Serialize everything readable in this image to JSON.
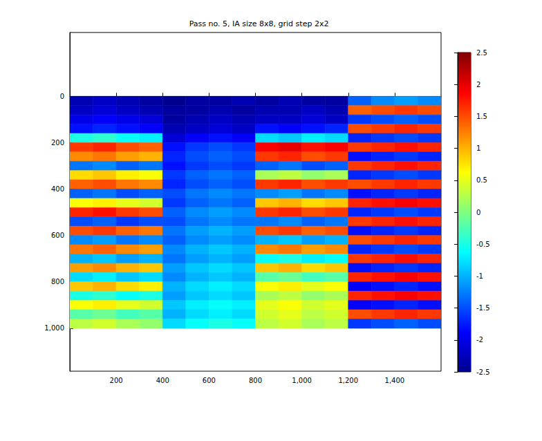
{
  "chart_data": {
    "type": "heatmap",
    "title": "Pass no. 5, IA size 8x8, grid step 2x2",
    "x_edges": [
      0,
      100,
      200,
      300,
      400,
      500,
      600,
      700,
      800,
      900,
      1000,
      1100,
      1200,
      1300,
      1400,
      1500,
      1600
    ],
    "y_edges": [
      0,
      40,
      80,
      120,
      160,
      200,
      240,
      280,
      320,
      360,
      400,
      440,
      480,
      520,
      560,
      600,
      640,
      680,
      720,
      760,
      800,
      840,
      880,
      920,
      960,
      1000
    ],
    "cells": [
      [
        -2.3,
        -2.2,
        -2.3,
        -2.4,
        -2.5,
        -2.4,
        -2.4,
        -2.3,
        -2.4,
        -2.3,
        -2.4,
        -2.4,
        -1.4,
        -1.2,
        -1.1,
        -1.2
      ],
      [
        -2.2,
        -2.1,
        -2.2,
        -2.3,
        -2.4,
        -2.4,
        -2.3,
        -2.4,
        -2.3,
        -2.3,
        -2.2,
        -2.3,
        1.4,
        1.5,
        1.6,
        1.5
      ],
      [
        -2.0,
        -1.9,
        -2.0,
        -2.1,
        -2.4,
        -2.3,
        -2.2,
        -2.3,
        -2.2,
        -2.2,
        -2.1,
        -2.2,
        -1.6,
        -1.5,
        -1.4,
        -1.5
      ],
      [
        -1.8,
        -1.7,
        -1.8,
        -1.9,
        -2.3,
        -2.2,
        -2.1,
        -2.2,
        -1.8,
        -1.9,
        -1.8,
        -1.7,
        1.5,
        1.6,
        1.7,
        1.6
      ],
      [
        -0.5,
        -0.4,
        -0.6,
        -0.7,
        -2.1,
        -1.9,
        -1.8,
        -1.9,
        -0.8,
        -0.9,
        -0.7,
        -0.8,
        -1.7,
        -1.6,
        -1.5,
        -1.6
      ],
      [
        1.6,
        1.7,
        1.5,
        1.4,
        -1.8,
        -1.6,
        -1.5,
        -1.6,
        1.9,
        2.0,
        1.8,
        1.9,
        1.6,
        1.7,
        1.8,
        1.7
      ],
      [
        1.2,
        1.3,
        1.1,
        1.0,
        -1.7,
        -1.5,
        -1.4,
        -1.5,
        1.6,
        1.7,
        1.5,
        1.6,
        -1.8,
        -1.7,
        -1.6,
        -1.7
      ],
      [
        -1.3,
        -1.2,
        -1.4,
        -1.3,
        -1.8,
        -1.6,
        -1.5,
        -1.6,
        -1.4,
        -1.3,
        -1.5,
        -1.4,
        1.6,
        1.7,
        1.8,
        1.7
      ],
      [
        0.8,
        0.9,
        0.7,
        0.6,
        -1.6,
        -1.4,
        -1.3,
        -1.4,
        0.2,
        0.3,
        0.1,
        0.2,
        -1.7,
        -1.6,
        -1.5,
        -1.6
      ],
      [
        1.4,
        1.5,
        1.3,
        1.2,
        -1.7,
        -1.5,
        -1.4,
        -1.5,
        1.6,
        1.7,
        1.5,
        1.6,
        1.5,
        1.6,
        1.7,
        1.6
      ],
      [
        -1.4,
        -1.3,
        -1.5,
        -1.4,
        -1.5,
        -1.3,
        -1.2,
        -1.3,
        -1.2,
        -1.1,
        -1.3,
        -1.2,
        -1.8,
        -1.7,
        -1.6,
        -1.7
      ],
      [
        0.6,
        0.7,
        0.5,
        0.4,
        -1.6,
        -1.4,
        -1.3,
        -1.4,
        0.9,
        1.0,
        0.8,
        0.9,
        1.7,
        1.8,
        1.9,
        1.8
      ],
      [
        1.7,
        1.8,
        1.6,
        1.5,
        -1.4,
        -1.2,
        -1.1,
        -1.2,
        1.6,
        1.7,
        1.5,
        1.6,
        -1.7,
        -1.6,
        -1.5,
        -1.6
      ],
      [
        -1.5,
        -1.4,
        -1.6,
        -1.5,
        -1.5,
        -1.3,
        -1.2,
        -1.3,
        -1.3,
        -1.2,
        -1.4,
        -1.3,
        1.6,
        1.7,
        1.8,
        1.7
      ],
      [
        1.5,
        1.6,
        1.4,
        1.3,
        -1.3,
        -1.1,
        -1.0,
        -1.1,
        1.5,
        1.6,
        1.4,
        1.5,
        -1.8,
        -1.7,
        -1.6,
        -1.7
      ],
      [
        -1.2,
        -1.1,
        -1.3,
        -1.2,
        -1.4,
        -1.2,
        -1.1,
        -1.2,
        -1.0,
        -0.9,
        -1.1,
        -1.0,
        1.5,
        1.6,
        1.7,
        1.6
      ],
      [
        1.3,
        1.4,
        1.2,
        1.1,
        -1.2,
        -1.0,
        -0.9,
        -1.0,
        1.2,
        1.3,
        1.1,
        1.2,
        -1.7,
        -1.6,
        -1.5,
        -1.6
      ],
      [
        -1.0,
        -0.9,
        -1.1,
        -1.0,
        -1.3,
        -1.1,
        -1.0,
        -1.1,
        -0.6,
        -0.5,
        -0.7,
        -0.6,
        1.6,
        1.7,
        1.8,
        1.7
      ],
      [
        1.1,
        1.2,
        1.0,
        0.9,
        -1.1,
        -0.9,
        -0.8,
        -0.9,
        0.9,
        1.0,
        0.8,
        0.9,
        -1.8,
        -1.7,
        -1.6,
        -1.7
      ],
      [
        -0.8,
        -0.7,
        -0.9,
        -0.8,
        -1.2,
        -1.0,
        -0.9,
        -1.0,
        -0.2,
        -0.1,
        -0.3,
        -0.2,
        1.7,
        1.8,
        1.9,
        1.8
      ],
      [
        0.9,
        1.0,
        0.8,
        0.7,
        -1.0,
        -0.8,
        -0.7,
        -0.8,
        0.6,
        0.7,
        0.5,
        0.6,
        -1.9,
        -1.8,
        -1.7,
        -1.8
      ],
      [
        -0.5,
        -0.4,
        -0.6,
        -0.5,
        -1.1,
        -0.9,
        -0.8,
        -0.9,
        0.2,
        0.3,
        0.1,
        0.2,
        1.7,
        1.8,
        1.9,
        1.8
      ],
      [
        0.6,
        0.7,
        0.5,
        0.4,
        -0.9,
        -0.7,
        -0.6,
        -0.7,
        0.5,
        0.6,
        0.4,
        0.5,
        -1.9,
        -1.8,
        -1.7,
        -1.8
      ],
      [
        -0.2,
        -0.1,
        -0.3,
        -0.2,
        -1.0,
        -0.8,
        -0.7,
        -0.8,
        0.4,
        0.5,
        0.3,
        0.4,
        1.5,
        1.6,
        1.7,
        1.6
      ],
      [
        0.3,
        0.4,
        0.2,
        0.1,
        -0.8,
        -0.6,
        -0.5,
        -0.6,
        0.3,
        0.4,
        0.2,
        0.3,
        -1.6,
        -1.5,
        -1.4,
        -1.5
      ]
    ],
    "xlim": [
      0,
      1600
    ],
    "xticks": [
      200,
      400,
      600,
      800,
      1000,
      1200,
      1400
    ],
    "ylim": [
      -275,
      1185
    ],
    "yticks": [
      0,
      200,
      400,
      600,
      800,
      1000
    ],
    "clim": [
      -2.5,
      2.5
    ],
    "cticks": [
      -2.5,
      -2,
      -1.5,
      -1,
      -0.5,
      0,
      0.5,
      1,
      1.5,
      2,
      2.5
    ]
  }
}
